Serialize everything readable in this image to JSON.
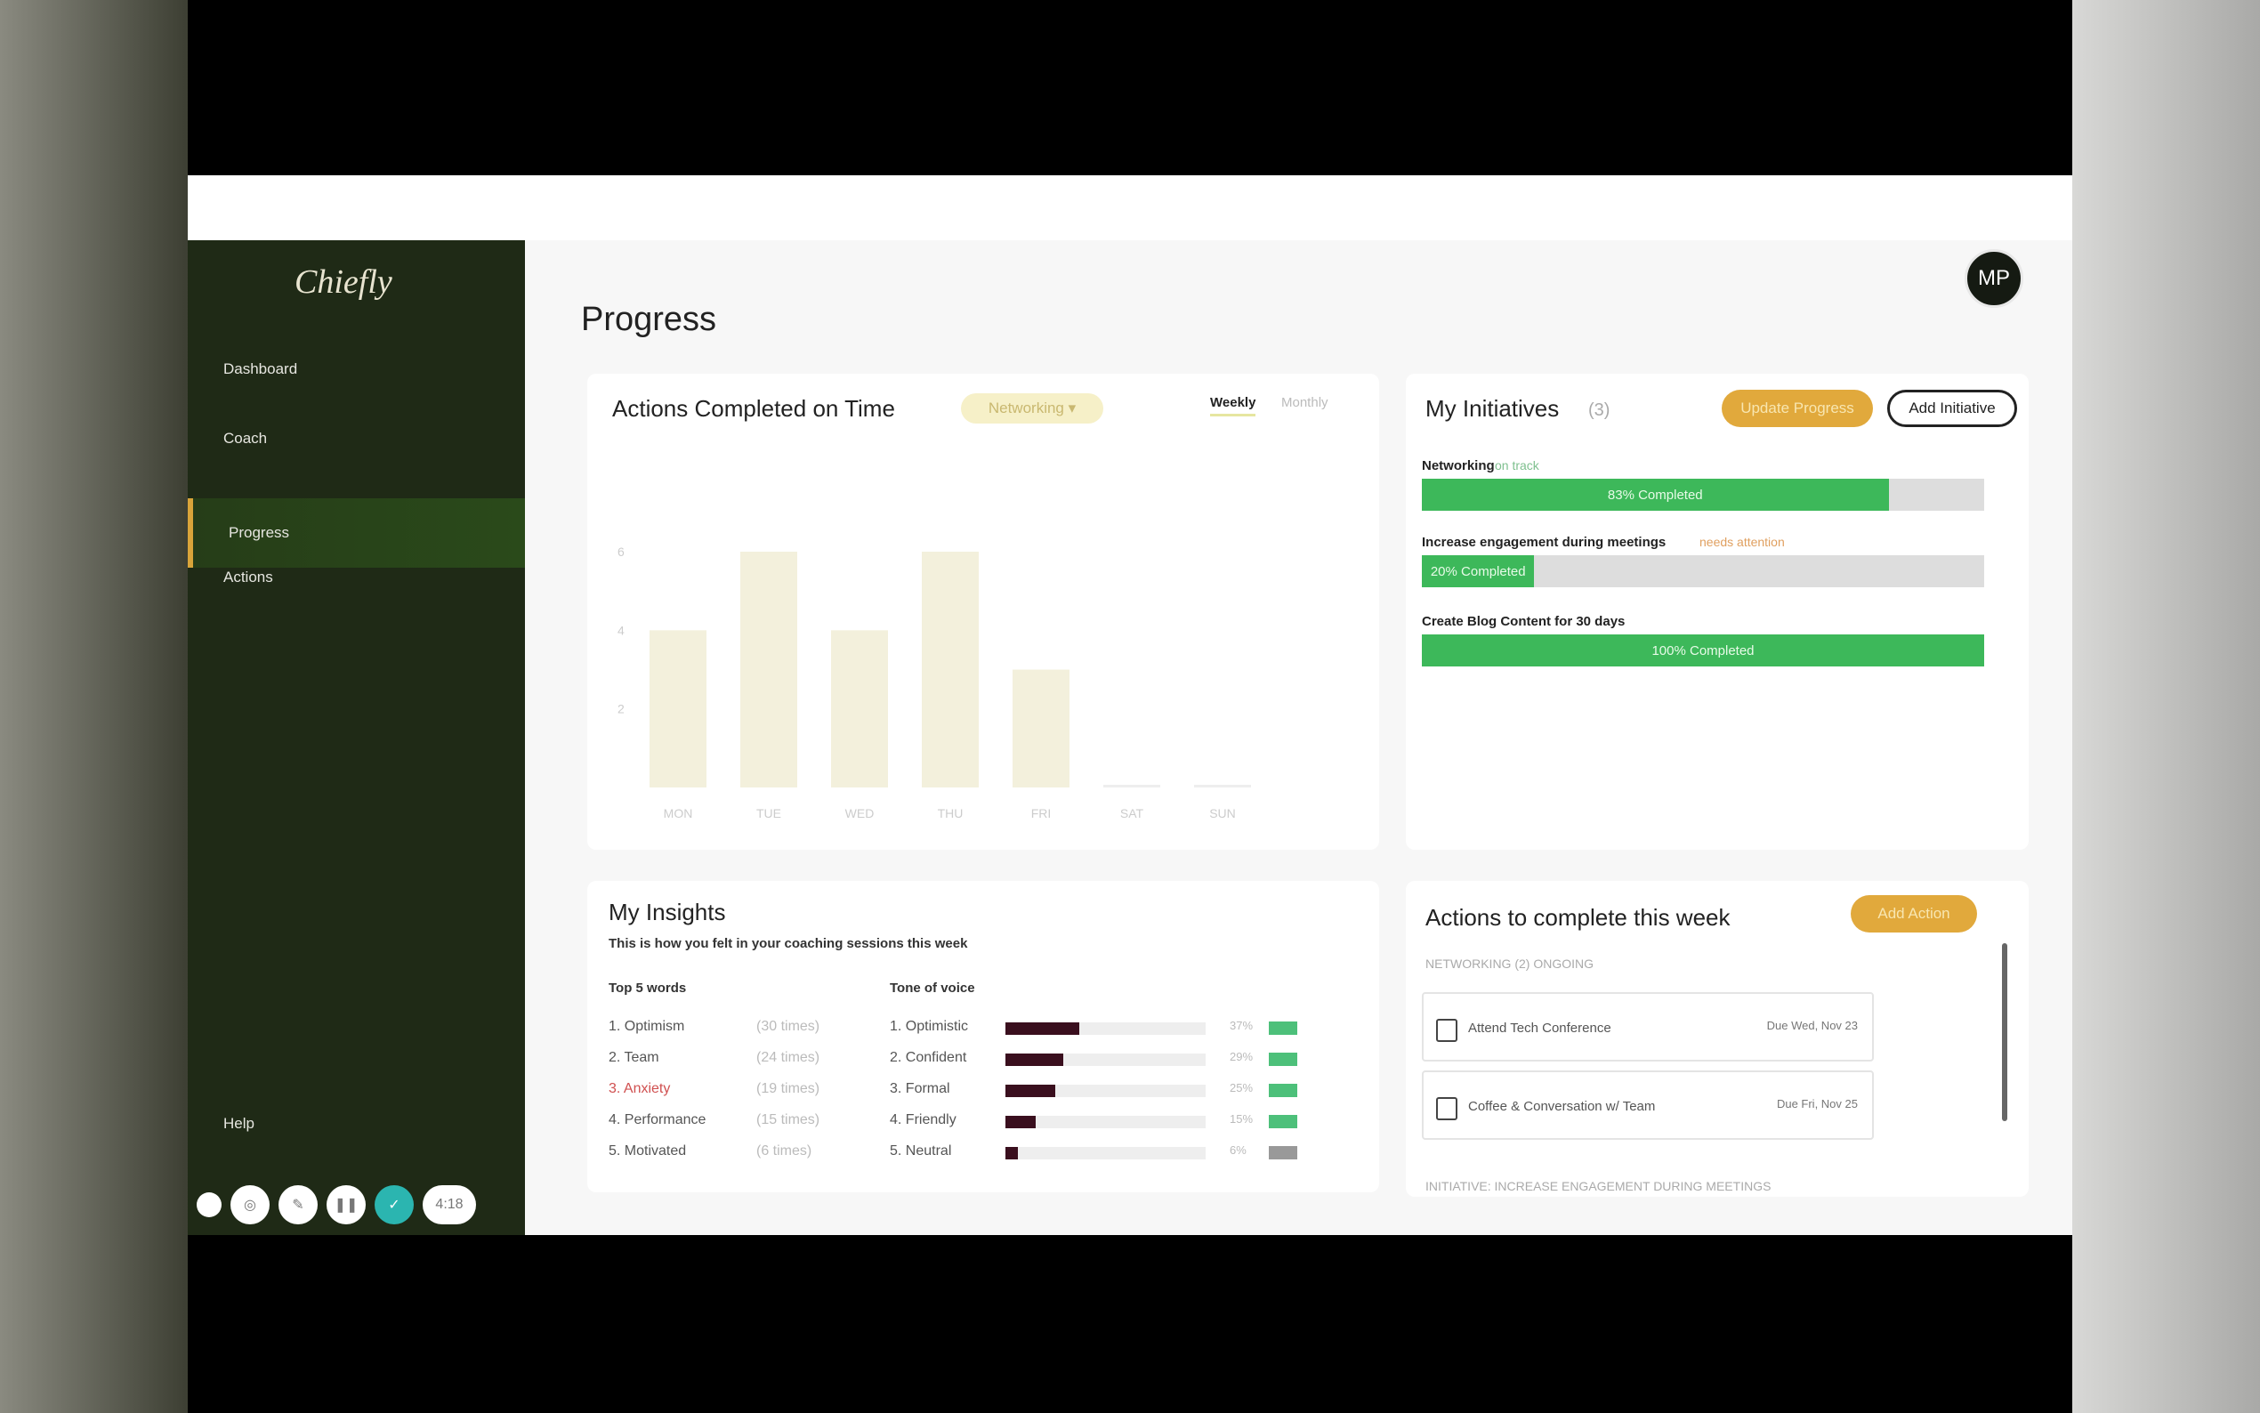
{
  "app": {
    "logo": "Chiefly",
    "page_title": "Progress",
    "avatar_initials": "MP"
  },
  "sidebar": {
    "items": [
      {
        "label": "Dashboard"
      },
      {
        "label": "Coach"
      },
      {
        "label": "Progress",
        "active": true
      },
      {
        "label": "Actions"
      }
    ],
    "help": "Help"
  },
  "recorder": {
    "timer": "4:18"
  },
  "chart_card": {
    "title": "Actions Completed on Time",
    "filter": "Networking",
    "tabs": [
      "Weekly",
      "Monthly"
    ],
    "active_tab": "Weekly"
  },
  "chart_data": {
    "type": "bar",
    "title": "Actions Completed on Time",
    "categories": [
      "MON",
      "TUE",
      "WED",
      "THU",
      "FRI",
      "SAT",
      "SUN"
    ],
    "values": [
      4,
      6,
      4,
      6,
      3,
      0,
      0
    ],
    "yticks": [
      "2",
      "4",
      "6"
    ],
    "ylim": [
      0,
      6
    ],
    "color": "#f3f0dc",
    "grid": false
  },
  "initiatives": {
    "title": "My Initiatives",
    "count": "(3)",
    "update_button": "Update Progress",
    "add_button": "Add Initiative",
    "items": [
      {
        "name": "Networking",
        "status": "on track",
        "status_color": "#7fc08f",
        "progress": 83,
        "label": "83% Completed"
      },
      {
        "name": "Increase engagement during meetings",
        "status": "needs attention",
        "status_color": "#e0a060",
        "progress": 20,
        "label": "20% Completed"
      },
      {
        "name": "Create Blog Content for 30 days",
        "status": "",
        "progress": 100,
        "label": "100% Completed"
      }
    ]
  },
  "insights": {
    "title": "My Insights",
    "subtitle": "This is how you felt in your coaching sessions this week",
    "words_header": "Top 5 words",
    "tone_header": "Tone of voice",
    "words": [
      {
        "label": "1. Optimism",
        "count": "(30 times)"
      },
      {
        "label": "2. Team",
        "count": "(24 times)"
      },
      {
        "label": "3. Anxiety",
        "count": "(19 times)",
        "alert": true
      },
      {
        "label": "4. Performance",
        "count": "(15 times)"
      },
      {
        "label": "5. Motivated",
        "count": "(6 times)"
      }
    ],
    "tones": [
      {
        "label": "1. Optimistic",
        "value": 37,
        "pct": "37%"
      },
      {
        "label": "2. Confident",
        "value": 29,
        "pct": "29%"
      },
      {
        "label": "3. Formal",
        "value": 25,
        "pct": "25%"
      },
      {
        "label": "4. Friendly",
        "value": 15,
        "pct": "15%"
      },
      {
        "label": "5. Neutral",
        "value": 6,
        "pct": "6%"
      }
    ]
  },
  "actions": {
    "title": "Actions to complete this week",
    "add_button": "Add Action",
    "section": "NETWORKING (2) ONGOING",
    "items": [
      {
        "label": "Attend Tech Conference",
        "due": "Due Wed, Nov 23"
      },
      {
        "label": "Coffee & Conversation w/ Team",
        "due": "Due Fri, Nov 25"
      }
    ],
    "next_section": "INITIATIVE: INCREASE ENGAGEMENT DURING MEETINGS"
  }
}
